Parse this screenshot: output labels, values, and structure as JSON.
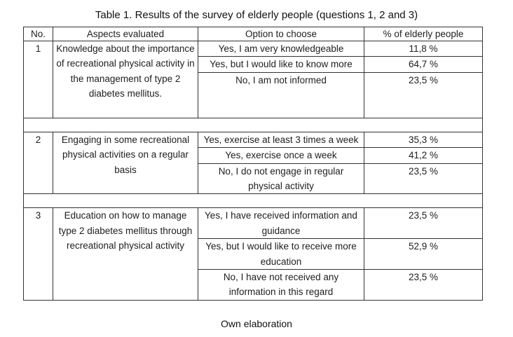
{
  "caption": "Table 1. Results of the survey of elderly people (questions 1, 2 and 3)",
  "headers": {
    "no": "No.",
    "aspect": "Aspects evaluated",
    "option": "Option to choose",
    "percent": "% of elderly people"
  },
  "groups": [
    {
      "no": "1",
      "aspect": "Knowledge about the importance of recreational physical activity in the management of type 2 diabetes mellitus.",
      "options": [
        {
          "text": "Yes, I am very knowledgeable",
          "percent": "11,8 %"
        },
        {
          "text": "Yes, but I would like to know more",
          "percent": "64,7 %"
        },
        {
          "text": "No, I am not informed",
          "percent": "23,5 %"
        }
      ]
    },
    {
      "no": "2",
      "aspect": "Engaging in some recreational physical activities on a regular basis",
      "options": [
        {
          "text": "Yes, exercise at least 3 times a week",
          "percent": "35,3 %"
        },
        {
          "text": "Yes, exercise once a week",
          "percent": "41,2 %"
        },
        {
          "text": "No, I do not engage in regular physical activity",
          "percent": "23,5 %"
        }
      ]
    },
    {
      "no": "3",
      "aspect": "Education on how to manage type 2 diabetes mellitus through recreational physical activity",
      "options": [
        {
          "text": "Yes, I have received information and guidance",
          "percent": "23,5 %"
        },
        {
          "text": "Yes, but I would like to receive more education",
          "percent": "52,9 %"
        },
        {
          "text": "No, I have not received any information in this regard",
          "percent": "23,5 %"
        }
      ]
    }
  ],
  "footer": "Own elaboration"
}
